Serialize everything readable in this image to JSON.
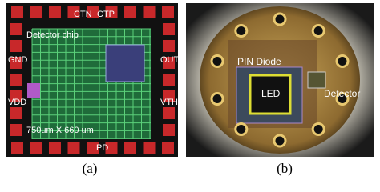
{
  "panels": [
    {
      "caption": "(a)",
      "labels": {
        "ctn": "CTN",
        "ctp": "CTP",
        "chip": "Detector chip",
        "gnd": "GND",
        "out": "OUT",
        "vdd": "VDD",
        "vth": "VTH",
        "size": "750um X 660 um",
        "pd": "PD"
      }
    },
    {
      "caption": "(b)",
      "labels": {
        "pin": "PIN Diode",
        "led": "LED",
        "detector": "Detector"
      }
    }
  ]
}
